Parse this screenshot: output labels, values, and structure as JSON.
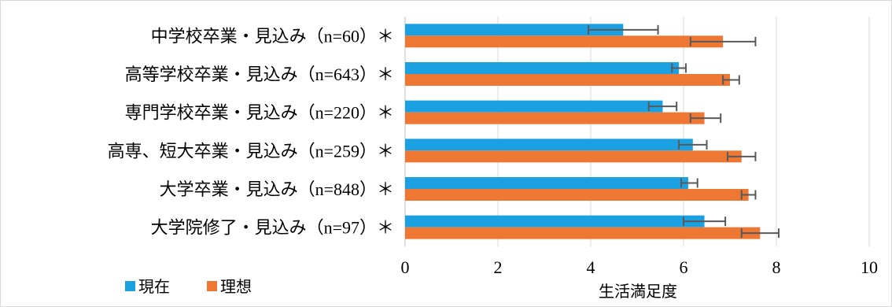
{
  "chart_data": {
    "type": "bar",
    "orientation": "horizontal",
    "categories": [
      "中学校卒業・見込み（n=60）＊",
      "高等学校卒業・見込み（n=643）＊",
      "専門学校卒業・見込み（n=220）＊",
      "高専、短大卒業・見込み（n=259）＊",
      "大学卒業・見込み（n=848）＊",
      "大学院修了・見込み（n=97）＊"
    ],
    "series": [
      {
        "name": "現在",
        "color": "#1ba1e2",
        "values": [
          4.7,
          5.9,
          5.55,
          6.2,
          6.1,
          6.45
        ],
        "error": [
          [
            3.95,
            5.45
          ],
          [
            5.75,
            6.05
          ],
          [
            5.25,
            5.85
          ],
          [
            5.9,
            6.5
          ],
          [
            5.95,
            6.3
          ],
          [
            6.0,
            6.9
          ]
        ]
      },
      {
        "name": "理想",
        "color": "#ee7733",
        "values": [
          6.85,
          7.0,
          6.45,
          7.25,
          7.4,
          7.65
        ],
        "error": [
          [
            6.15,
            7.55
          ],
          [
            6.85,
            7.2
          ],
          [
            6.15,
            6.8
          ],
          [
            6.95,
            7.55
          ],
          [
            7.25,
            7.55
          ],
          [
            7.25,
            8.05
          ]
        ]
      }
    ],
    "xlim": [
      0,
      10
    ],
    "xticks": [
      "0",
      "2",
      "4",
      "6",
      "8",
      "10"
    ],
    "xlabel": "生活満足度",
    "ylabel": "",
    "title": "",
    "grid": "vertical",
    "legend_position": "bottom-left"
  }
}
